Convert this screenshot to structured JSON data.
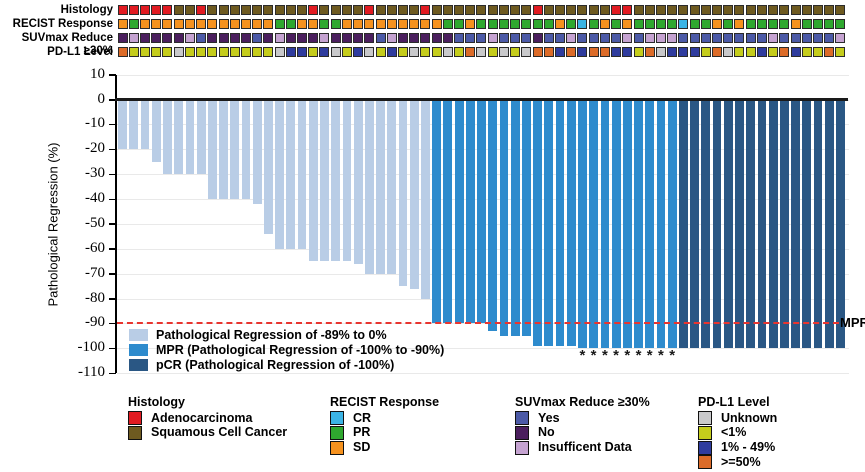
{
  "palette": {
    "A": "#E11B22",
    "S": "#6E5A20",
    "SD": "#F6921E",
    "PR": "#2FA82F",
    "CR": "#3BB4E5",
    "Y": "#4C5AA7",
    "N": "#4B1F5E",
    "I": "#C5A3D1",
    "U": "#C9C9CB",
    "LT1": "#C5CD1C",
    "B49": "#2F3C9E",
    "GE50": "#DC6B28"
  },
  "annotation_tracks": [
    {
      "label": "Histology",
      "values": [
        "A",
        "A",
        "A",
        "A",
        "A",
        "S",
        "S",
        "A",
        "S",
        "S",
        "S",
        "S",
        "S",
        "S",
        "S",
        "S",
        "S",
        "A",
        "S",
        "S",
        "S",
        "S",
        "A",
        "S",
        "S",
        "S",
        "S",
        "A",
        "S",
        "S",
        "S",
        "S",
        "S",
        "S",
        "S",
        "S",
        "S",
        "A",
        "S",
        "S",
        "S",
        "S",
        "S",
        "S",
        "A",
        "A",
        "S",
        "S",
        "S",
        "S",
        "S",
        "S",
        "S",
        "S",
        "S",
        "S",
        "S",
        "S",
        "S",
        "S",
        "S",
        "S",
        "S",
        "S",
        "S"
      ]
    },
    {
      "label": "RECIST Response",
      "values": [
        "SD",
        "PR",
        "SD",
        "SD",
        "SD",
        "SD",
        "SD",
        "SD",
        "SD",
        "SD",
        "SD",
        "SD",
        "SD",
        "SD",
        "PR",
        "PR",
        "SD",
        "SD",
        "PR",
        "PR",
        "SD",
        "SD",
        "SD",
        "SD",
        "SD",
        "SD",
        "SD",
        "SD",
        "SD",
        "PR",
        "PR",
        "SD",
        "PR",
        "PR",
        "PR",
        "PR",
        "PR",
        "PR",
        "PR",
        "SD",
        "PR",
        "CR",
        "PR",
        "SD",
        "PR",
        "SD",
        "PR",
        "PR",
        "PR",
        "PR",
        "CR",
        "PR",
        "PR",
        "SD",
        "PR",
        "SD",
        "PR",
        "PR",
        "PR",
        "PR",
        "SD",
        "PR",
        "PR",
        "PR",
        "PR"
      ]
    },
    {
      "label": "SUVmax Reduce ≥30%",
      "values": [
        "N",
        "I",
        "N",
        "N",
        "N",
        "N",
        "I",
        "Y",
        "N",
        "N",
        "N",
        "N",
        "Y",
        "N",
        "I",
        "N",
        "N",
        "N",
        "I",
        "N",
        "N",
        "N",
        "N",
        "Y",
        "I",
        "N",
        "N",
        "N",
        "N",
        "N",
        "Y",
        "Y",
        "Y",
        "I",
        "Y",
        "Y",
        "Y",
        "N",
        "Y",
        "Y",
        "I",
        "Y",
        "Y",
        "Y",
        "Y",
        "I",
        "Y",
        "I",
        "I",
        "I",
        "Y",
        "Y",
        "Y",
        "Y",
        "Y",
        "Y",
        "Y",
        "Y",
        "I",
        "Y",
        "Y",
        "Y",
        "Y",
        "Y",
        "I"
      ]
    },
    {
      "label": "PD-L1 Level",
      "values": [
        "GE50",
        "LT1",
        "LT1",
        "LT1",
        "LT1",
        "U",
        "LT1",
        "LT1",
        "LT1",
        "LT1",
        "LT1",
        "LT1",
        "LT1",
        "LT1",
        "U",
        "B49",
        "B49",
        "LT1",
        "B49",
        "U",
        "LT1",
        "B49",
        "U",
        "LT1",
        "B49",
        "LT1",
        "U",
        "LT1",
        "LT1",
        "U",
        "LT1",
        "GE50",
        "U",
        "LT1",
        "U",
        "LT1",
        "U",
        "GE50",
        "GE50",
        "B49",
        "GE50",
        "B49",
        "GE50",
        "GE50",
        "B49",
        "B49",
        "LT1",
        "GE50",
        "U",
        "B49",
        "B49",
        "B49",
        "LT1",
        "GE50",
        "U",
        "LT1",
        "LT1",
        "B49",
        "LT1",
        "GE50",
        "B49",
        "LT1",
        "LT1",
        "GE50",
        "LT1"
      ]
    }
  ],
  "chart_data": {
    "type": "bar",
    "title": "",
    "xlabel": "",
    "ylabel": "Pathological Regression (%)",
    "ylim": [
      -110,
      10
    ],
    "yticks": [
      10,
      0,
      -10,
      -20,
      -30,
      -40,
      -50,
      -60,
      -70,
      -80,
      -90,
      -100,
      -110
    ],
    "grid": true,
    "values": [
      -20,
      -20,
      -20,
      -25,
      -30,
      -30,
      -30,
      -30,
      -40,
      -40,
      -40,
      -40,
      -42,
      -54,
      -60,
      -60,
      -60,
      -65,
      -65,
      -65,
      -65,
      -66,
      -70,
      -70,
      -70,
      -75,
      -76,
      -80,
      -90,
      -90,
      -90,
      -90,
      -90,
      -93,
      -95,
      -95,
      -95,
      -99,
      -99,
      -99,
      -99,
      -100,
      -100,
      -100,
      -100,
      -100,
      -100,
      -100,
      -100,
      -100,
      -100,
      -100,
      -100,
      -100,
      -100,
      -100,
      -100,
      -100,
      -100,
      -100,
      -100,
      -100,
      -100,
      -100,
      -100
    ],
    "segments": [
      {
        "category": "regression",
        "count": 28
      },
      {
        "category": "mpr",
        "count": 22
      },
      {
        "category": "pcr",
        "count": 15
      }
    ],
    "asterisk_indices": [
      41,
      42,
      43,
      44,
      45,
      46,
      47,
      48,
      49
    ],
    "asterisk_glyph": "*",
    "bar_categories": {
      "regression": {
        "label": "Pathological Regression of -89% to 0%",
        "color": "#B9CDE6"
      },
      "mpr": {
        "label": "MPR (Pathological Regression of -100% to -90%)",
        "color": "#2E8BCD"
      },
      "pcr": {
        "label": "pCR (Pathological Regression of -100%)",
        "color": "#2A5784"
      }
    },
    "reference_line": {
      "y": -90,
      "label": "MPR",
      "color": "#E8352F"
    }
  },
  "bottom_legend_groups": [
    {
      "title": "Histology",
      "items": [
        {
          "label": "Adenocarcinoma",
          "key": "A"
        },
        {
          "label": "Squamous Cell Cancer",
          "key": "S"
        }
      ]
    },
    {
      "title": "RECIST Response",
      "items": [
        {
          "label": "CR",
          "key": "CR"
        },
        {
          "label": "PR",
          "key": "PR"
        },
        {
          "label": "SD",
          "key": "SD"
        }
      ]
    },
    {
      "title": "SUVmax Reduce ≥30%",
      "items": [
        {
          "label": "Yes",
          "key": "Y"
        },
        {
          "label": "No",
          "key": "N"
        },
        {
          "label": "Insufficent Data",
          "key": "I"
        }
      ]
    },
    {
      "title": "PD-L1 Level",
      "items": [
        {
          "label": "Unknown",
          "key": "U"
        },
        {
          "label": "<1%",
          "key": "LT1"
        },
        {
          "label": "1% - 49%",
          "key": "B49"
        },
        {
          "label": ">=50%",
          "key": "GE50"
        }
      ]
    }
  ]
}
